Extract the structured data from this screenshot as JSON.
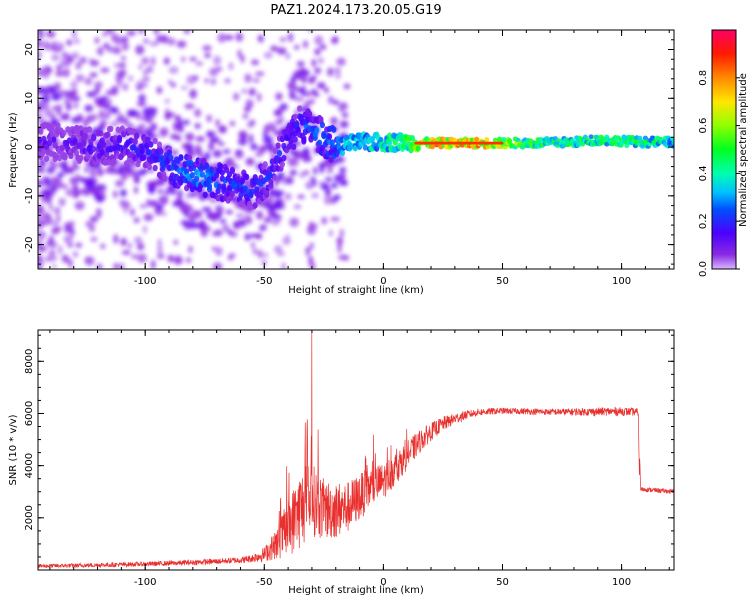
{
  "title": "PAZ1.2024.173.20.05.G19",
  "chart_data": [
    {
      "type": "heatmap",
      "xlabel": "Height of straight line (km)",
      "ylabel": "Frequency (Hz)",
      "xlim": [
        -145,
        122
      ],
      "ylim": [
        -25,
        24
      ],
      "xticks": [
        -100,
        -50,
        0,
        50,
        100
      ],
      "yticks": [
        -20,
        -10,
        0,
        10,
        20
      ],
      "colorbar": {
        "label": "Normalized spectral amplitude",
        "range": [
          0,
          1
        ],
        "ticks": [
          0.0,
          0.2,
          0.4,
          0.6,
          0.8
        ],
        "tick_labels": [
          "0.0",
          "0.2",
          "0.4",
          "0.6",
          "0.8"
        ],
        "colormap": "gist_rainbow_r",
        "low_color": "#ffffff"
      },
      "ridge": [
        {
          "x": -135,
          "y": 1.0,
          "a": 0.15
        },
        {
          "x": -120,
          "y": 0.0,
          "a": 0.2
        },
        {
          "x": -110,
          "y": 0.5,
          "a": 0.2
        },
        {
          "x": -100,
          "y": -1.0,
          "a": 0.22
        },
        {
          "x": -92,
          "y": -3.0,
          "a": 0.25
        },
        {
          "x": -85,
          "y": -5.0,
          "a": 0.3
        },
        {
          "x": -78,
          "y": -6.0,
          "a": 0.35
        },
        {
          "x": -70,
          "y": -7.0,
          "a": 0.3
        },
        {
          "x": -62,
          "y": -8.0,
          "a": 0.25
        },
        {
          "x": -55,
          "y": -9.0,
          "a": 0.25
        },
        {
          "x": -48,
          "y": -6.0,
          "a": 0.25
        },
        {
          "x": -42,
          "y": 0.0,
          "a": 0.22
        },
        {
          "x": -35,
          "y": 5.0,
          "a": 0.25
        },
        {
          "x": -28,
          "y": 3.0,
          "a": 0.3
        },
        {
          "x": -20,
          "y": 0.0,
          "a": 0.35
        },
        {
          "x": -10,
          "y": 1.0,
          "a": 0.45
        },
        {
          "x": 0,
          "y": 1.0,
          "a": 0.5
        },
        {
          "x": 10,
          "y": 1.0,
          "a": 0.55
        },
        {
          "x": 20,
          "y": 0.8,
          "a": 0.85
        },
        {
          "x": 40,
          "y": 0.8,
          "a": 0.85
        },
        {
          "x": 60,
          "y": 0.8,
          "a": 0.6
        },
        {
          "x": 80,
          "y": 1.0,
          "a": 0.5
        },
        {
          "x": 90,
          "y": 1.5,
          "a": 0.55
        },
        {
          "x": 110,
          "y": 1.0,
          "a": 0.5
        },
        {
          "x": 122,
          "y": 1.0,
          "a": 0.45
        }
      ]
    },
    {
      "type": "line",
      "xlabel": "Height of straight line (km)",
      "ylabel": "SNR (10 * v/v)",
      "xlim": [
        -145,
        122
      ],
      "ylim": [
        0,
        9200
      ],
      "xticks": [
        -100,
        -50,
        0,
        50,
        100
      ],
      "yticks": [
        2000,
        4000,
        6000,
        8000
      ],
      "color": "#e8312e",
      "series": [
        {
          "x": [
            -145,
            -130,
            -115,
            -100,
            -85,
            -70,
            -60,
            -55,
            -50,
            -45,
            -40,
            -35,
            -32,
            -30,
            -27,
            -25,
            -20,
            -15,
            -10,
            -5,
            0,
            5,
            10,
            15,
            20,
            25,
            30,
            35,
            40,
            45,
            50,
            60,
            70,
            80,
            90,
            100,
            107,
            108,
            115,
            122
          ],
          "y": [
            150,
            170,
            200,
            230,
            270,
            330,
            380,
            450,
            600,
            1000,
            1600,
            2300,
            2600,
            2700,
            2500,
            2300,
            2300,
            2400,
            2800,
            3200,
            3400,
            3900,
            4400,
            4900,
            5300,
            5600,
            5800,
            5950,
            6050,
            6080,
            6100,
            6080,
            6060,
            6060,
            6070,
            6080,
            6050,
            3100,
            3050,
            3000
          ],
          "noise": [
            80,
            80,
            90,
            90,
            100,
            110,
            120,
            160,
            280,
            600,
            1100,
            1500,
            1500,
            1400,
            1300,
            1200,
            1100,
            1000,
            900,
            800,
            700,
            650,
            550,
            450,
            350,
            280,
            220,
            170,
            140,
            130,
            120,
            120,
            120,
            140,
            160,
            160,
            150,
            90,
            90,
            90
          ]
        }
      ],
      "peak": {
        "x": -30,
        "y": 9200
      }
    }
  ]
}
